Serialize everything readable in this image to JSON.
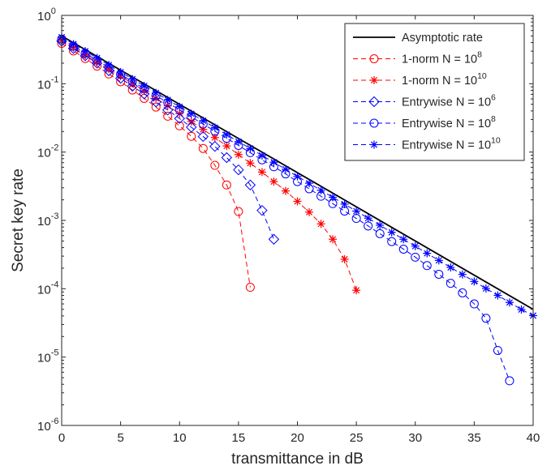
{
  "chart_data": {
    "type": "line",
    "xlabel": "transmittance in dB",
    "ylabel": "Secret key rate",
    "xlim": [
      0,
      40
    ],
    "ylim": [
      1e-06,
      1
    ],
    "yscale": "log",
    "grid": false,
    "legend_position": "top-right",
    "x_ticks": [
      0,
      5,
      10,
      15,
      20,
      25,
      30,
      35,
      40
    ],
    "y_ticks": [
      {
        "base": "10",
        "exp": "-6",
        "value": 1e-06
      },
      {
        "base": "10",
        "exp": "-5",
        "value": 1e-05
      },
      {
        "base": "10",
        "exp": "-4",
        "value": 0.0001
      },
      {
        "base": "10",
        "exp": "-3",
        "value": 0.001
      },
      {
        "base": "10",
        "exp": "-2",
        "value": 0.01
      },
      {
        "base": "10",
        "exp": "-1",
        "value": 0.1
      },
      {
        "base": "10",
        "exp": "0",
        "value": 1
      }
    ],
    "series": [
      {
        "name": "Asymptotic rate",
        "label_main": "Asymptotic rate",
        "label_sup": "",
        "color": "#000000",
        "dash": "",
        "marker": "none",
        "x": [
          0,
          40
        ],
        "y": [
          0.5,
          5e-05
        ]
      },
      {
        "name": "1-norm N = 10^8",
        "label_main": "1-norm N = 10",
        "label_sup": "8",
        "color": "#ff0000",
        "dash": "6,4",
        "marker": "circle",
        "x": [
          0,
          1,
          2,
          3,
          4,
          5,
          6,
          7,
          8,
          9,
          10,
          11,
          12,
          13,
          14,
          15,
          16
        ],
        "y": [
          0.39,
          0.302,
          0.234,
          0.181,
          0.139,
          0.107,
          0.081,
          0.061,
          0.0455,
          0.0335,
          0.0242,
          0.017,
          0.0113,
          0.0064,
          0.0033,
          0.00135,
          0.000105
        ]
      },
      {
        "name": "1-norm N = 10^10",
        "label_main": "1-norm N = 10",
        "label_sup": "10",
        "color": "#ff0000",
        "dash": "6,4",
        "marker": "star",
        "x": [
          0,
          1,
          2,
          3,
          4,
          5,
          6,
          7,
          8,
          9,
          10,
          11,
          12,
          13,
          14,
          15,
          16,
          17,
          18,
          19,
          20,
          21,
          22,
          23,
          24,
          25
        ],
        "y": [
          0.43,
          0.338,
          0.266,
          0.209,
          0.164,
          0.129,
          0.101,
          0.079,
          0.061,
          0.0475,
          0.0365,
          0.028,
          0.0215,
          0.0163,
          0.0123,
          0.0092,
          0.0069,
          0.0051,
          0.0037,
          0.0027,
          0.0019,
          0.00132,
          0.00089,
          0.00053,
          0.00027,
          9.5e-05
        ]
      },
      {
        "name": "Entrywise N = 10^6",
        "label_main": "Entrywise N = 10",
        "label_sup": "6",
        "color": "#0000ff",
        "dash": "6,4",
        "marker": "diamond",
        "x": [
          0,
          1,
          2,
          3,
          4,
          5,
          6,
          7,
          8,
          9,
          10,
          11,
          12,
          13,
          14,
          15,
          16,
          17,
          18
        ],
        "y": [
          0.42,
          0.328,
          0.256,
          0.2,
          0.155,
          0.12,
          0.092,
          0.071,
          0.0542,
          0.0412,
          0.031,
          0.0231,
          0.0169,
          0.0121,
          0.0083,
          0.0055,
          0.0033,
          0.0014,
          0.00053
        ]
      },
      {
        "name": "Entrywise N = 10^8",
        "label_main": "Entrywise N = 10",
        "label_sup": "8",
        "color": "#0000ff",
        "dash": "6,4",
        "marker": "circle",
        "x": [
          0,
          1,
          2,
          3,
          4,
          5,
          6,
          7,
          8,
          9,
          10,
          11,
          12,
          13,
          14,
          15,
          16,
          17,
          18,
          19,
          20,
          21,
          22,
          23,
          24,
          25,
          26,
          27,
          28,
          29,
          30,
          31,
          32,
          33,
          34,
          35,
          36,
          37,
          38
        ],
        "y": [
          0.45,
          0.355,
          0.28,
          0.221,
          0.174,
          0.137,
          0.108,
          0.085,
          0.0669,
          0.0527,
          0.0415,
          0.0327,
          0.0257,
          0.0202,
          0.0159,
          0.0125,
          0.0098,
          0.0077,
          0.0061,
          0.0048,
          0.0037,
          0.0029,
          0.00226,
          0.00176,
          0.00137,
          0.00107,
          0.00083,
          0.00064,
          0.00049,
          0.00038,
          0.00029,
          0.000218,
          0.000163,
          0.00012,
          8.7e-05,
          6e-05,
          3.7e-05,
          1.25e-05,
          4.5e-06
        ]
      },
      {
        "name": "Entrywise N = 10^10",
        "label_main": "Entrywise N = 10",
        "label_sup": "10",
        "color": "#0000ff",
        "dash": "6,4",
        "marker": "star",
        "x": [
          0,
          1,
          2,
          3,
          4,
          5,
          6,
          7,
          8,
          9,
          10,
          11,
          12,
          13,
          14,
          15,
          16,
          17,
          18,
          19,
          20,
          21,
          22,
          23,
          24,
          25,
          26,
          27,
          28,
          29,
          30,
          31,
          32,
          33,
          34,
          35,
          36,
          37,
          38,
          39,
          40
        ],
        "y": [
          0.48,
          0.38,
          0.3,
          0.238,
          0.188,
          0.148,
          0.117,
          0.093,
          0.0735,
          0.0581,
          0.046,
          0.0364,
          0.0288,
          0.0228,
          0.018,
          0.0142,
          0.0113,
          0.0089,
          0.0071,
          0.0056,
          0.0044,
          0.0035,
          0.00276,
          0.00218,
          0.00173,
          0.00137,
          0.00108,
          0.00085,
          0.00067,
          0.00053,
          0.00042,
          0.00033,
          0.00026,
          0.000205,
          0.000162,
          0.000128,
          0.000101,
          8e-05,
          6.3e-05,
          4.97e-05,
          4.05e-05
        ]
      }
    ]
  }
}
